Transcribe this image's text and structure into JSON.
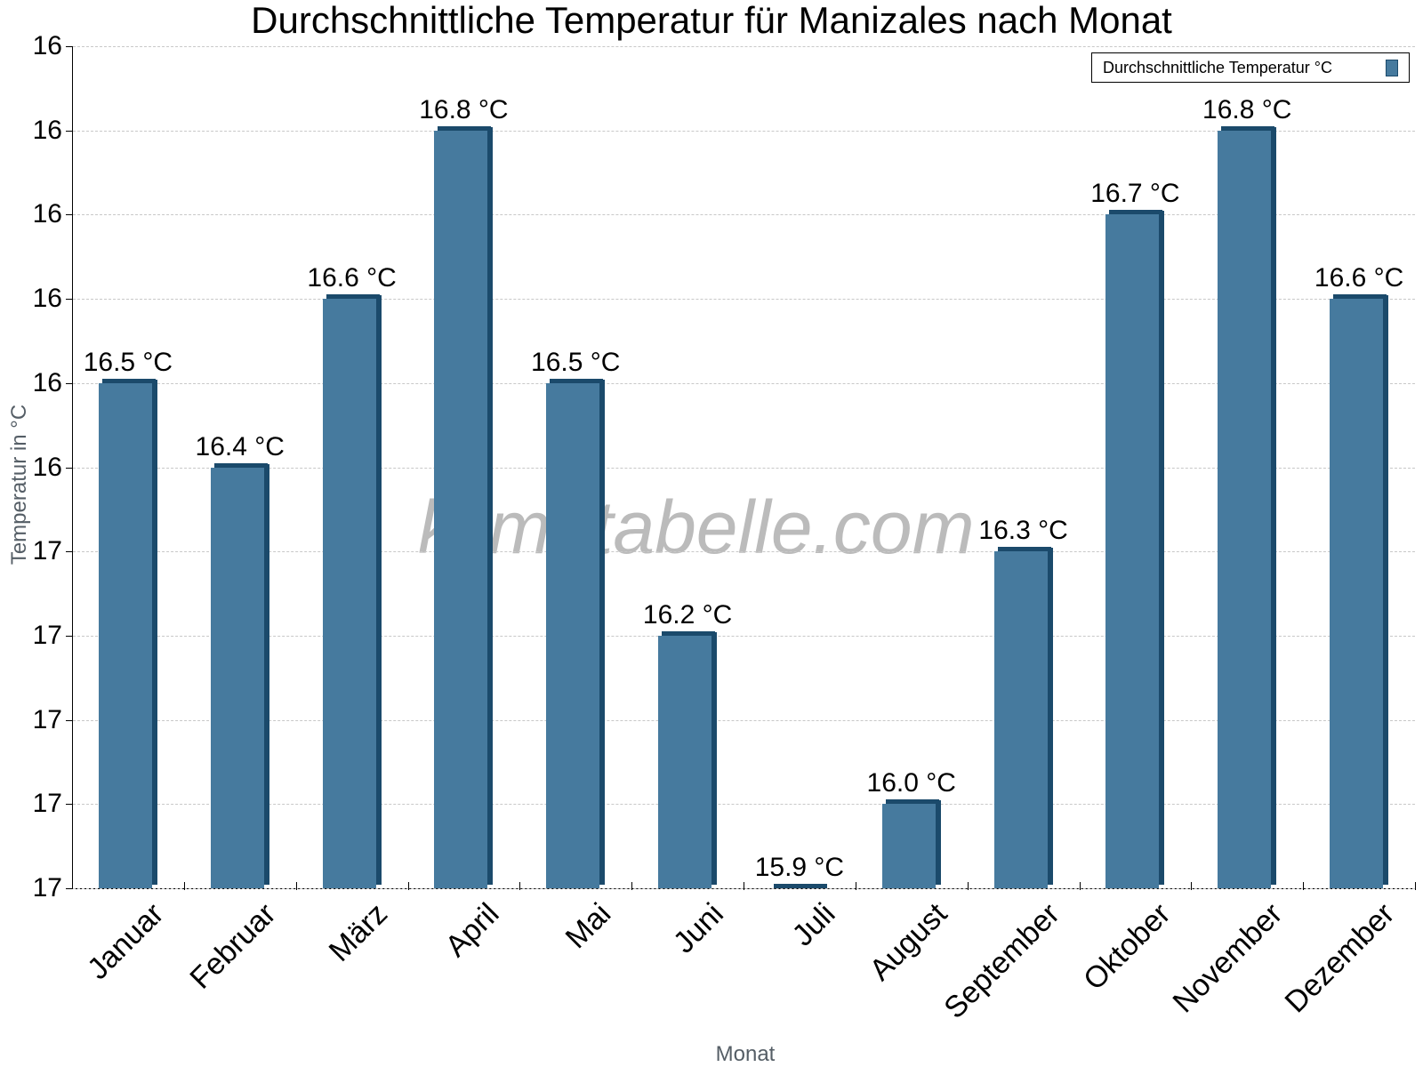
{
  "chart_data": {
    "type": "bar",
    "title": "Durchschnittliche Temperatur für Manizales nach Monat",
    "xlabel": "Monat",
    "ylabel": "Temperatur in °C",
    "categories": [
      "Januar",
      "Februar",
      "März",
      "April",
      "Mai",
      "Juni",
      "Juli",
      "August",
      "September",
      "Oktober",
      "November",
      "Dezember"
    ],
    "series": [
      {
        "name": "Durchschnittliche Temperatur °C",
        "values": [
          16.5,
          16.4,
          16.6,
          16.8,
          16.5,
          16.2,
          15.9,
          16.0,
          16.3,
          16.7,
          16.8,
          16.6
        ],
        "color": "#467a9e"
      }
    ],
    "value_labels": [
      "16.5 °C",
      "16.4 °C",
      "16.6 °C",
      "16.8 °C",
      "16.5 °C",
      "16.2 °C",
      "15.9 °C",
      "16.0 °C",
      "16.3 °C",
      "16.7 °C",
      "16.8 °C",
      "16.6 °C"
    ],
    "y_tick_labels": [
      "17",
      "17",
      "17",
      "17",
      "17",
      "16",
      "16",
      "16",
      "16",
      "16",
      "16"
    ],
    "ylim": [
      15.9,
      16.9
    ],
    "grid": true,
    "legend_position": "top-right"
  },
  "watermark": "klimatabelle.com"
}
